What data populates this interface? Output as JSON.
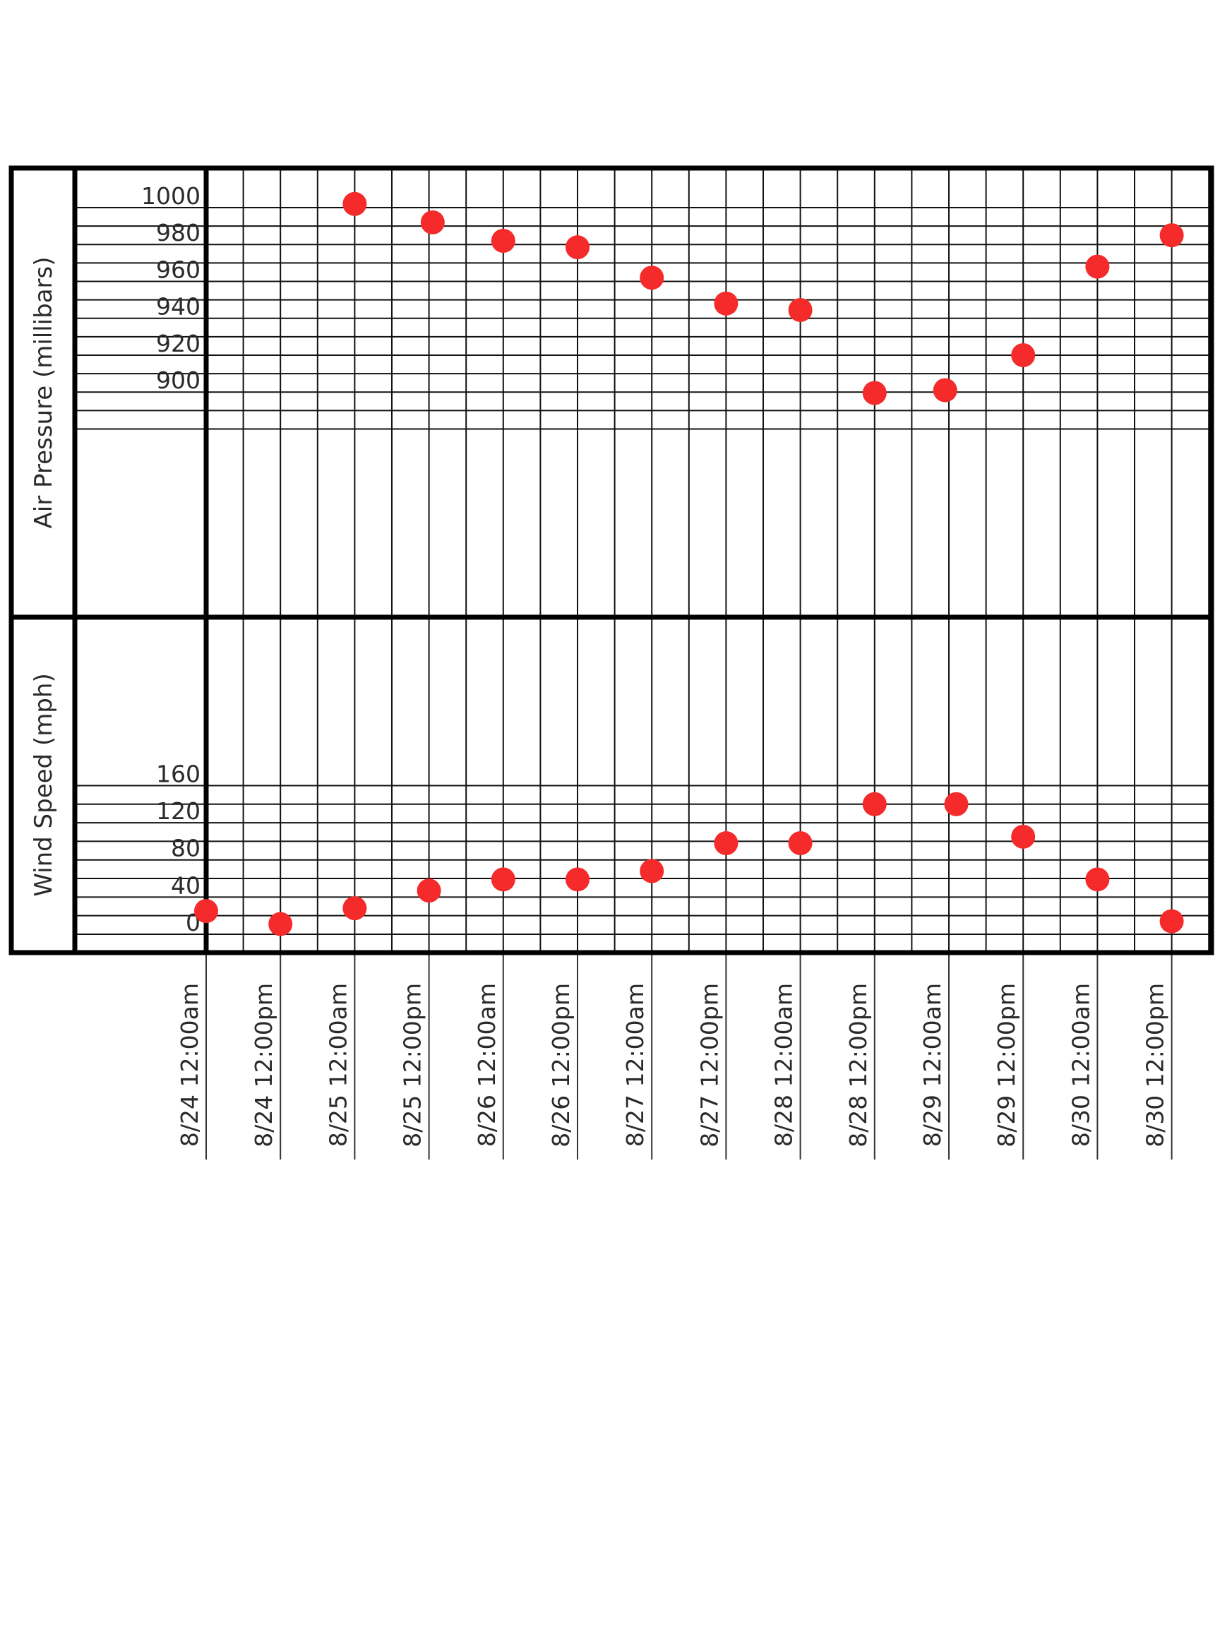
{
  "chart_data": [
    {
      "type": "scatter",
      "ylabel": "Air Pressure (millibars)",
      "ylim": [
        880,
        1004
      ],
      "yticks": [
        900,
        920,
        940,
        960,
        980,
        1000
      ],
      "categories": [
        "8/24 12:00am",
        "8/24 12:00pm",
        "8/25 12:00am",
        "8/25 12:00pm",
        "8/26 12:00am",
        "8/26 12:00pm",
        "8/27 12:00am",
        "8/27 12:00pm",
        "8/28 12:00am",
        "8/28 12:00pm",
        "8/29 12:00am",
        "8/29 12:00pm",
        "8/30 12:00am",
        "8/30 12:00pm"
      ],
      "points": [
        {
          "x": 2,
          "y": 1002
        },
        {
          "x": 3.05,
          "y": 992
        },
        {
          "x": 4,
          "y": 982
        },
        {
          "x": 5,
          "y": 978.5
        },
        {
          "x": 6,
          "y": 962
        },
        {
          "x": 7,
          "y": 948
        },
        {
          "x": 8,
          "y": 944.5
        },
        {
          "x": 9,
          "y": 899.5
        },
        {
          "x": 9.95,
          "y": 901
        },
        {
          "x": 11,
          "y": 920
        },
        {
          "x": 12,
          "y": 968
        },
        {
          "x": 13,
          "y": 985
        }
      ],
      "color": "#f52a2a",
      "grid": true
    },
    {
      "type": "scatter",
      "ylabel": "Wind Speed (mph)",
      "ylim": [
        -10,
        170
      ],
      "yticks": [
        0,
        40,
        80,
        120,
        160
      ],
      "categories": [
        "8/24 12:00am",
        "8/24 12:00pm",
        "8/25 12:00am",
        "8/25 12:00pm",
        "8/26 12:00am",
        "8/26 12:00pm",
        "8/27 12:00am",
        "8/27 12:00pm",
        "8/28 12:00am",
        "8/28 12:00pm",
        "8/29 12:00am",
        "8/29 12:00pm",
        "8/30 12:00am",
        "8/30 12:00pm"
      ],
      "points": [
        {
          "x": 0,
          "y": 25
        },
        {
          "x": 1,
          "y": 11
        },
        {
          "x": 2,
          "y": 28
        },
        {
          "x": 3,
          "y": 47
        },
        {
          "x": 4,
          "y": 59
        },
        {
          "x": 5,
          "y": 59
        },
        {
          "x": 6,
          "y": 68
        },
        {
          "x": 7,
          "y": 98
        },
        {
          "x": 8,
          "y": 98
        },
        {
          "x": 9,
          "y": 140
        },
        {
          "x": 10.1,
          "y": 140
        },
        {
          "x": 11,
          "y": 105
        },
        {
          "x": 12,
          "y": 59
        },
        {
          "x": 13,
          "y": 14
        }
      ],
      "color": "#f52a2a",
      "grid": true
    }
  ]
}
